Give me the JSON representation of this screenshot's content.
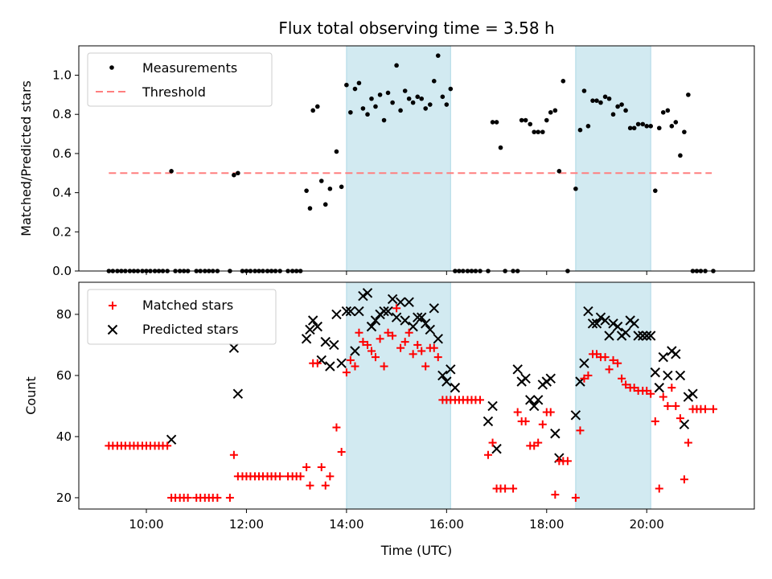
{
  "chart_data": {
    "title": "Flux total observing time = 3.58 h",
    "xlabel": "Time (UTC)",
    "x_unit": "hours UTC",
    "xlim": [
      8.65,
      22.15
    ],
    "xticks": [
      10,
      12,
      14,
      16,
      18,
      20
    ],
    "xtick_labels": [
      "10:00",
      "12:00",
      "14:00",
      "16:00",
      "18:00",
      "20:00"
    ],
    "colors": {
      "measurements": "#000000",
      "threshold": "#ff7f7f",
      "matched": "#ff0000",
      "predicted": "#000000",
      "band": "#add8e6"
    },
    "highlight_bands": [
      [
        14.0,
        16.08
      ],
      [
        18.58,
        20.08
      ]
    ],
    "top": {
      "type": "scatter",
      "ylabel": "Matched/Predicted stars",
      "ylim": [
        0,
        1.15
      ],
      "yticks": [
        0.0,
        0.2,
        0.4,
        0.6,
        0.8,
        1.0
      ],
      "ytick_labels": [
        "0.0",
        "0.2",
        "0.4",
        "0.6",
        "0.8",
        "1.0"
      ],
      "legend": {
        "measurements": "Measurements",
        "threshold": "Threshold"
      },
      "threshold": {
        "value": 0.5,
        "x_start": 9.25,
        "x_end": 21.3
      },
      "points": [
        [
          9.25,
          0
        ],
        [
          9.33,
          0
        ],
        [
          9.42,
          0
        ],
        [
          9.5,
          0
        ],
        [
          9.58,
          0
        ],
        [
          9.67,
          0
        ],
        [
          9.75,
          0
        ],
        [
          9.83,
          0
        ],
        [
          9.92,
          0
        ],
        [
          10.0,
          0
        ],
        [
          10.08,
          0
        ],
        [
          10.17,
          0
        ],
        [
          10.25,
          0
        ],
        [
          10.33,
          0
        ],
        [
          10.42,
          0
        ],
        [
          10.5,
          0.51
        ],
        [
          10.58,
          0
        ],
        [
          10.67,
          0
        ],
        [
          10.75,
          0
        ],
        [
          10.83,
          0
        ],
        [
          11.0,
          0
        ],
        [
          11.08,
          0
        ],
        [
          11.17,
          0
        ],
        [
          11.25,
          0
        ],
        [
          11.33,
          0
        ],
        [
          11.42,
          0
        ],
        [
          11.67,
          0
        ],
        [
          11.75,
          0.49
        ],
        [
          11.83,
          0.5
        ],
        [
          11.92,
          0
        ],
        [
          12.0,
          0
        ],
        [
          12.08,
          0
        ],
        [
          12.17,
          0
        ],
        [
          12.25,
          0
        ],
        [
          12.33,
          0
        ],
        [
          12.42,
          0
        ],
        [
          12.5,
          0
        ],
        [
          12.58,
          0
        ],
        [
          12.67,
          0
        ],
        [
          12.83,
          0
        ],
        [
          12.92,
          0
        ],
        [
          13.0,
          0
        ],
        [
          13.08,
          0
        ],
        [
          13.2,
          0.41
        ],
        [
          13.27,
          0.32
        ],
        [
          13.33,
          0.82
        ],
        [
          13.42,
          0.84
        ],
        [
          13.5,
          0.46
        ],
        [
          13.58,
          0.34
        ],
        [
          13.67,
          0.42
        ],
        [
          13.8,
          0.61
        ],
        [
          13.9,
          0.43
        ],
        [
          14.0,
          0.95
        ],
        [
          14.08,
          0.81
        ],
        [
          14.17,
          0.93
        ],
        [
          14.25,
          0.96
        ],
        [
          14.33,
          0.83
        ],
        [
          14.42,
          0.8
        ],
        [
          14.5,
          0.88
        ],
        [
          14.58,
          0.84
        ],
        [
          14.67,
          0.9
        ],
        [
          14.75,
          0.77
        ],
        [
          14.83,
          0.91
        ],
        [
          14.92,
          0.86
        ],
        [
          15.0,
          1.05
        ],
        [
          15.08,
          0.82
        ],
        [
          15.17,
          0.92
        ],
        [
          15.25,
          0.88
        ],
        [
          15.33,
          0.86
        ],
        [
          15.42,
          0.89
        ],
        [
          15.5,
          0.88
        ],
        [
          15.58,
          0.83
        ],
        [
          15.67,
          0.85
        ],
        [
          15.75,
          0.97
        ],
        [
          15.83,
          1.1
        ],
        [
          15.92,
          0.89
        ],
        [
          16.0,
          0.85
        ],
        [
          16.08,
          0.93
        ],
        [
          16.17,
          0
        ],
        [
          16.25,
          0
        ],
        [
          16.33,
          0
        ],
        [
          16.42,
          0
        ],
        [
          16.5,
          0
        ],
        [
          16.58,
          0
        ],
        [
          16.67,
          0
        ],
        [
          16.83,
          0
        ],
        [
          16.92,
          0.76
        ],
        [
          17.0,
          0.76
        ],
        [
          17.08,
          0.63
        ],
        [
          17.17,
          0
        ],
        [
          17.33,
          0
        ],
        [
          17.42,
          0
        ],
        [
          17.5,
          0.77
        ],
        [
          17.58,
          0.77
        ],
        [
          17.67,
          0.75
        ],
        [
          17.75,
          0.71
        ],
        [
          17.83,
          0.71
        ],
        [
          17.92,
          0.71
        ],
        [
          18.0,
          0.77
        ],
        [
          18.08,
          0.81
        ],
        [
          18.17,
          0.82
        ],
        [
          18.25,
          0.51
        ],
        [
          18.33,
          0.97
        ],
        [
          18.42,
          0
        ],
        [
          18.58,
          0.42
        ],
        [
          18.67,
          0.72
        ],
        [
          18.75,
          0.92
        ],
        [
          18.83,
          0.74
        ],
        [
          18.92,
          0.87
        ],
        [
          19.0,
          0.87
        ],
        [
          19.08,
          0.86
        ],
        [
          19.17,
          0.89
        ],
        [
          19.25,
          0.88
        ],
        [
          19.33,
          0.8
        ],
        [
          19.42,
          0.84
        ],
        [
          19.5,
          0.85
        ],
        [
          19.58,
          0.82
        ],
        [
          19.67,
          0.73
        ],
        [
          19.75,
          0.73
        ],
        [
          19.83,
          0.75
        ],
        [
          19.92,
          0.75
        ],
        [
          20.0,
          0.74
        ],
        [
          20.08,
          0.74
        ],
        [
          20.17,
          0.41
        ],
        [
          20.25,
          0.73
        ],
        [
          20.33,
          0.81
        ],
        [
          20.42,
          0.82
        ],
        [
          20.5,
          0.74
        ],
        [
          20.58,
          0.76
        ],
        [
          20.67,
          0.59
        ],
        [
          20.75,
          0.71
        ],
        [
          20.83,
          0.9
        ],
        [
          20.92,
          0
        ],
        [
          21.0,
          0
        ],
        [
          21.08,
          0
        ],
        [
          21.17,
          0
        ],
        [
          21.33,
          0
        ]
      ]
    },
    "bottom": {
      "type": "scatter",
      "ylabel": "Count",
      "ylim": [
        16.3,
        90.5
      ],
      "yticks": [
        20,
        40,
        60,
        80
      ],
      "ytick_labels": [
        "20",
        "40",
        "60",
        "80"
      ],
      "legend": {
        "matched": "Matched stars",
        "predicted": "Predicted stars"
      },
      "matched": [
        [
          9.25,
          37
        ],
        [
          9.33,
          37
        ],
        [
          9.42,
          37
        ],
        [
          9.5,
          37
        ],
        [
          9.58,
          37
        ],
        [
          9.67,
          37
        ],
        [
          9.75,
          37
        ],
        [
          9.83,
          37
        ],
        [
          9.92,
          37
        ],
        [
          10.0,
          37
        ],
        [
          10.08,
          37
        ],
        [
          10.17,
          37
        ],
        [
          10.25,
          37
        ],
        [
          10.33,
          37
        ],
        [
          10.42,
          37
        ],
        [
          10.5,
          20
        ],
        [
          10.58,
          20
        ],
        [
          10.67,
          20
        ],
        [
          10.75,
          20
        ],
        [
          10.83,
          20
        ],
        [
          11.0,
          20
        ],
        [
          11.08,
          20
        ],
        [
          11.17,
          20
        ],
        [
          11.25,
          20
        ],
        [
          11.33,
          20
        ],
        [
          11.42,
          20
        ],
        [
          11.67,
          20
        ],
        [
          11.75,
          34
        ],
        [
          11.83,
          27
        ],
        [
          11.92,
          27
        ],
        [
          12.0,
          27
        ],
        [
          12.08,
          27
        ],
        [
          12.17,
          27
        ],
        [
          12.25,
          27
        ],
        [
          12.33,
          27
        ],
        [
          12.42,
          27
        ],
        [
          12.5,
          27
        ],
        [
          12.58,
          27
        ],
        [
          12.67,
          27
        ],
        [
          12.83,
          27
        ],
        [
          12.92,
          27
        ],
        [
          13.0,
          27
        ],
        [
          13.08,
          27
        ],
        [
          13.2,
          30
        ],
        [
          13.27,
          24
        ],
        [
          13.33,
          64
        ],
        [
          13.42,
          64
        ],
        [
          13.5,
          30
        ],
        [
          13.58,
          24
        ],
        [
          13.67,
          27
        ],
        [
          13.8,
          43
        ],
        [
          13.9,
          35
        ],
        [
          14.0,
          61
        ],
        [
          14.08,
          65
        ],
        [
          14.17,
          63
        ],
        [
          14.25,
          74
        ],
        [
          14.33,
          71
        ],
        [
          14.42,
          70
        ],
        [
          14.5,
          68
        ],
        [
          14.58,
          66
        ],
        [
          14.67,
          72
        ],
        [
          14.75,
          63
        ],
        [
          14.83,
          74
        ],
        [
          14.92,
          73
        ],
        [
          15.0,
          82
        ],
        [
          15.08,
          69
        ],
        [
          15.17,
          71
        ],
        [
          15.25,
          74
        ],
        [
          15.33,
          67
        ],
        [
          15.42,
          70
        ],
        [
          15.5,
          68
        ],
        [
          15.58,
          63
        ],
        [
          15.67,
          69
        ],
        [
          15.75,
          69
        ],
        [
          15.83,
          66
        ],
        [
          15.92,
          52
        ],
        [
          16.0,
          52
        ],
        [
          16.08,
          52
        ],
        [
          16.17,
          52
        ],
        [
          16.25,
          52
        ],
        [
          16.33,
          52
        ],
        [
          16.42,
          52
        ],
        [
          16.5,
          52
        ],
        [
          16.58,
          52
        ],
        [
          16.67,
          52
        ],
        [
          16.83,
          34
        ],
        [
          16.92,
          38
        ],
        [
          17.0,
          23
        ],
        [
          17.08,
          23
        ],
        [
          17.17,
          23
        ],
        [
          17.33,
          23
        ],
        [
          17.42,
          48
        ],
        [
          17.5,
          45
        ],
        [
          17.58,
          45
        ],
        [
          17.67,
          37
        ],
        [
          17.75,
          37
        ],
        [
          17.83,
          38
        ],
        [
          17.92,
          44
        ],
        [
          18.0,
          48
        ],
        [
          18.08,
          48
        ],
        [
          18.17,
          21
        ],
        [
          18.25,
          32
        ],
        [
          18.33,
          32
        ],
        [
          18.42,
          32
        ],
        [
          18.58,
          20
        ],
        [
          18.67,
          42
        ],
        [
          18.75,
          59
        ],
        [
          18.83,
          60
        ],
        [
          18.92,
          67
        ],
        [
          19.0,
          67
        ],
        [
          19.08,
          66
        ],
        [
          19.17,
          66
        ],
        [
          19.25,
          62
        ],
        [
          19.33,
          65
        ],
        [
          19.42,
          64
        ],
        [
          19.5,
          59
        ],
        [
          19.58,
          57
        ],
        [
          19.67,
          56
        ],
        [
          19.75,
          56
        ],
        [
          19.83,
          55
        ],
        [
          19.92,
          55
        ],
        [
          20.0,
          55
        ],
        [
          20.08,
          54
        ],
        [
          20.17,
          45
        ],
        [
          20.25,
          23
        ],
        [
          20.33,
          53
        ],
        [
          20.42,
          50
        ],
        [
          20.5,
          56
        ],
        [
          20.58,
          50
        ],
        [
          20.67,
          46
        ],
        [
          20.75,
          26
        ],
        [
          20.83,
          38
        ],
        [
          20.92,
          49
        ],
        [
          21.0,
          49
        ],
        [
          21.08,
          49
        ],
        [
          21.17,
          49
        ],
        [
          21.33,
          49
        ]
      ],
      "predicted": [
        [
          10.5,
          39
        ],
        [
          11.75,
          69
        ],
        [
          11.83,
          54
        ],
        [
          13.2,
          72
        ],
        [
          13.27,
          75
        ],
        [
          13.33,
          78
        ],
        [
          13.42,
          76
        ],
        [
          13.5,
          65
        ],
        [
          13.58,
          71
        ],
        [
          13.67,
          63
        ],
        [
          13.75,
          70
        ],
        [
          13.8,
          80
        ],
        [
          13.9,
          64
        ],
        [
          14.0,
          81
        ],
        [
          14.08,
          81
        ],
        [
          14.17,
          68
        ],
        [
          14.25,
          81
        ],
        [
          14.33,
          86
        ],
        [
          14.42,
          87
        ],
        [
          14.5,
          76
        ],
        [
          14.58,
          78
        ],
        [
          14.67,
          80
        ],
        [
          14.75,
          81
        ],
        [
          14.83,
          81
        ],
        [
          14.92,
          85
        ],
        [
          15.0,
          79
        ],
        [
          15.08,
          84
        ],
        [
          15.17,
          78
        ],
        [
          15.25,
          84
        ],
        [
          15.33,
          76
        ],
        [
          15.42,
          79
        ],
        [
          15.5,
          79
        ],
        [
          15.58,
          77
        ],
        [
          15.67,
          75
        ],
        [
          15.75,
          82
        ],
        [
          15.83,
          72
        ],
        [
          15.92,
          60
        ],
        [
          16.0,
          58
        ],
        [
          16.08,
          62
        ],
        [
          16.17,
          56
        ],
        [
          16.83,
          45
        ],
        [
          16.92,
          50
        ],
        [
          17.0,
          36
        ],
        [
          17.42,
          62
        ],
        [
          17.5,
          58
        ],
        [
          17.58,
          59
        ],
        [
          17.67,
          52
        ],
        [
          17.75,
          50
        ],
        [
          17.83,
          52
        ],
        [
          17.92,
          57
        ],
        [
          18.0,
          58
        ],
        [
          18.08,
          59
        ],
        [
          18.17,
          41
        ],
        [
          18.25,
          33
        ],
        [
          18.58,
          47
        ],
        [
          18.67,
          58
        ],
        [
          18.75,
          64
        ],
        [
          18.83,
          81
        ],
        [
          18.92,
          77
        ],
        [
          19.0,
          77
        ],
        [
          19.08,
          79
        ],
        [
          19.17,
          78
        ],
        [
          19.25,
          73
        ],
        [
          19.33,
          77
        ],
        [
          19.42,
          76
        ],
        [
          19.5,
          73
        ],
        [
          19.58,
          74
        ],
        [
          19.67,
          78
        ],
        [
          19.75,
          77
        ],
        [
          19.83,
          73
        ],
        [
          19.92,
          73
        ],
        [
          20.0,
          73
        ],
        [
          20.08,
          73
        ],
        [
          20.17,
          61
        ],
        [
          20.25,
          56
        ],
        [
          20.33,
          66
        ],
        [
          20.42,
          60
        ],
        [
          20.5,
          68
        ],
        [
          20.58,
          67
        ],
        [
          20.67,
          60
        ],
        [
          20.75,
          44
        ],
        [
          20.83,
          53
        ],
        [
          20.92,
          54
        ]
      ]
    }
  }
}
